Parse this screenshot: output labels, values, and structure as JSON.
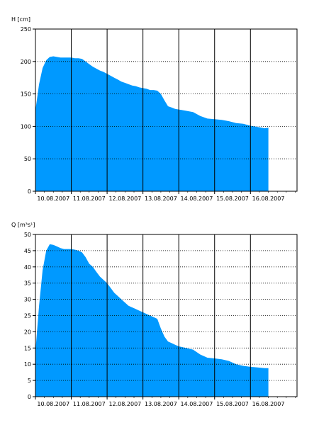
{
  "chart_data": [
    {
      "type": "area",
      "ylabel": "H [cm]",
      "xlabel": "",
      "ylim": [
        0,
        250
      ],
      "yticks": [
        0,
        50,
        100,
        150,
        200,
        250
      ],
      "xlim": [
        0,
        7.3
      ],
      "date_ticks": [
        "10.08.2007",
        "11.08.2007",
        "12.08.2007",
        "13.08.2007",
        "14.08.2007",
        "15.08.2007",
        "16.08.2007"
      ],
      "day_offsets": [
        0,
        1,
        2,
        3,
        4,
        5,
        6
      ],
      "grid": "horizontal dotted, vertical solid at day boundaries",
      "fill_color": "#0099ff",
      "series": [
        {
          "x": [
            0,
            0.1,
            0.2,
            0.3,
            0.4,
            0.5,
            0.6,
            0.7,
            0.8,
            0.9,
            1.0,
            1.1,
            1.2,
            1.3,
            1.4,
            1.5,
            1.6,
            1.7,
            1.8,
            1.9,
            2.0,
            2.1,
            2.2,
            2.3,
            2.4,
            2.5,
            2.6,
            2.7,
            2.8,
            2.9,
            3.0,
            3.1,
            3.2,
            3.3,
            3.4,
            3.5,
            3.6,
            3.7,
            3.8,
            3.9,
            4.0,
            4.2,
            4.4,
            4.6,
            4.8,
            5.0,
            5.2,
            5.4,
            5.6,
            5.8,
            6.0,
            6.2,
            6.4,
            6.5
          ],
          "y": [
            125,
            165,
            190,
            202,
            207,
            208,
            207,
            206,
            206,
            206,
            206,
            205,
            205,
            204,
            200,
            196,
            192,
            189,
            186,
            184,
            181,
            178,
            175,
            172,
            169,
            167,
            165,
            163,
            162,
            160,
            159,
            158,
            156,
            156,
            155,
            150,
            140,
            131,
            129,
            127,
            126,
            124,
            122,
            116,
            112,
            111,
            110,
            108,
            105,
            104,
            101,
            99,
            97,
            98
          ]
        }
      ]
    },
    {
      "type": "area",
      "ylabel": "Q [m³s¹]",
      "xlabel": "",
      "ylim": [
        0,
        50
      ],
      "yticks": [
        0,
        5,
        10,
        15,
        20,
        25,
        30,
        35,
        40,
        45,
        50
      ],
      "xlim": [
        0,
        7.3
      ],
      "date_ticks": [
        "10.08.2007",
        "11.08.2007",
        "12.08.2007",
        "13.08.2007",
        "14.08.2007",
        "15.08.2007",
        "16.08.2007"
      ],
      "day_offsets": [
        0,
        1,
        2,
        3,
        4,
        5,
        6
      ],
      "grid": "horizontal dotted, vertical solid at day boundaries",
      "fill_color": "#0099ff",
      "series": [
        {
          "x": [
            0,
            0.1,
            0.2,
            0.3,
            0.4,
            0.5,
            0.6,
            0.7,
            0.8,
            0.9,
            1.0,
            1.1,
            1.2,
            1.3,
            1.4,
            1.5,
            1.6,
            1.7,
            1.8,
            1.9,
            2.0,
            2.1,
            2.2,
            2.3,
            2.4,
            2.5,
            2.6,
            2.7,
            2.8,
            2.9,
            3.0,
            3.1,
            3.2,
            3.3,
            3.4,
            3.5,
            3.6,
            3.7,
            3.8,
            3.9,
            4.0,
            4.2,
            4.4,
            4.6,
            4.8,
            5.0,
            5.2,
            5.4,
            5.6,
            5.8,
            6.0,
            6.2,
            6.4,
            6.5
          ],
          "y": [
            14,
            28,
            39,
            45,
            47,
            46.8,
            46.3,
            45.8,
            45.5,
            45.5,
            45.5,
            45.3,
            45.0,
            44.5,
            43.0,
            41.0,
            40.0,
            38.5,
            37.0,
            36.0,
            35.0,
            33.5,
            32.0,
            31.0,
            30.0,
            29.0,
            28.0,
            27.5,
            27.0,
            26.5,
            26.0,
            25.5,
            25.0,
            24.5,
            24.0,
            21.0,
            18.5,
            17.0,
            16.5,
            16.0,
            15.5,
            15.0,
            14.5,
            13.0,
            12.0,
            11.8,
            11.5,
            11.0,
            10.0,
            9.5,
            9.2,
            9.0,
            8.8,
            8.8
          ]
        }
      ]
    }
  ]
}
